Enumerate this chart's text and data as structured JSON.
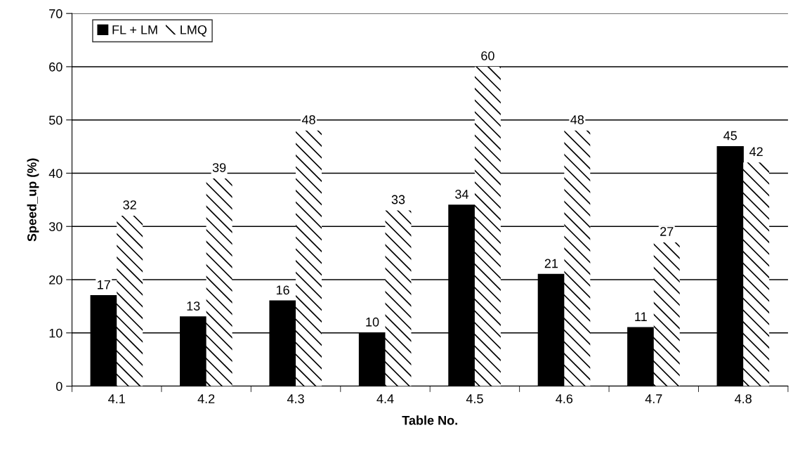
{
  "chart_data": {
    "type": "bar",
    "xlabel": "Table No.",
    "ylabel": "Speed_up (%)",
    "categories": [
      "4.1",
      "4.2",
      "4.3",
      "4.4",
      "4.5",
      "4.6",
      "4.7",
      "4.8"
    ],
    "series": [
      {
        "name": "FL + LM",
        "color": "#000000",
        "values": [
          17,
          13,
          16,
          10,
          34,
          21,
          11,
          45
        ]
      },
      {
        "name": "LMQ",
        "color": "#ffffff",
        "values": [
          32,
          39,
          48,
          33,
          60,
          48,
          27,
          42
        ]
      }
    ],
    "ylim": [
      0,
      70
    ],
    "yticks": [
      0,
      10,
      20,
      30,
      40,
      50,
      60,
      70
    ],
    "grid": "y",
    "legend": "top left",
    "data_labels": true
  }
}
